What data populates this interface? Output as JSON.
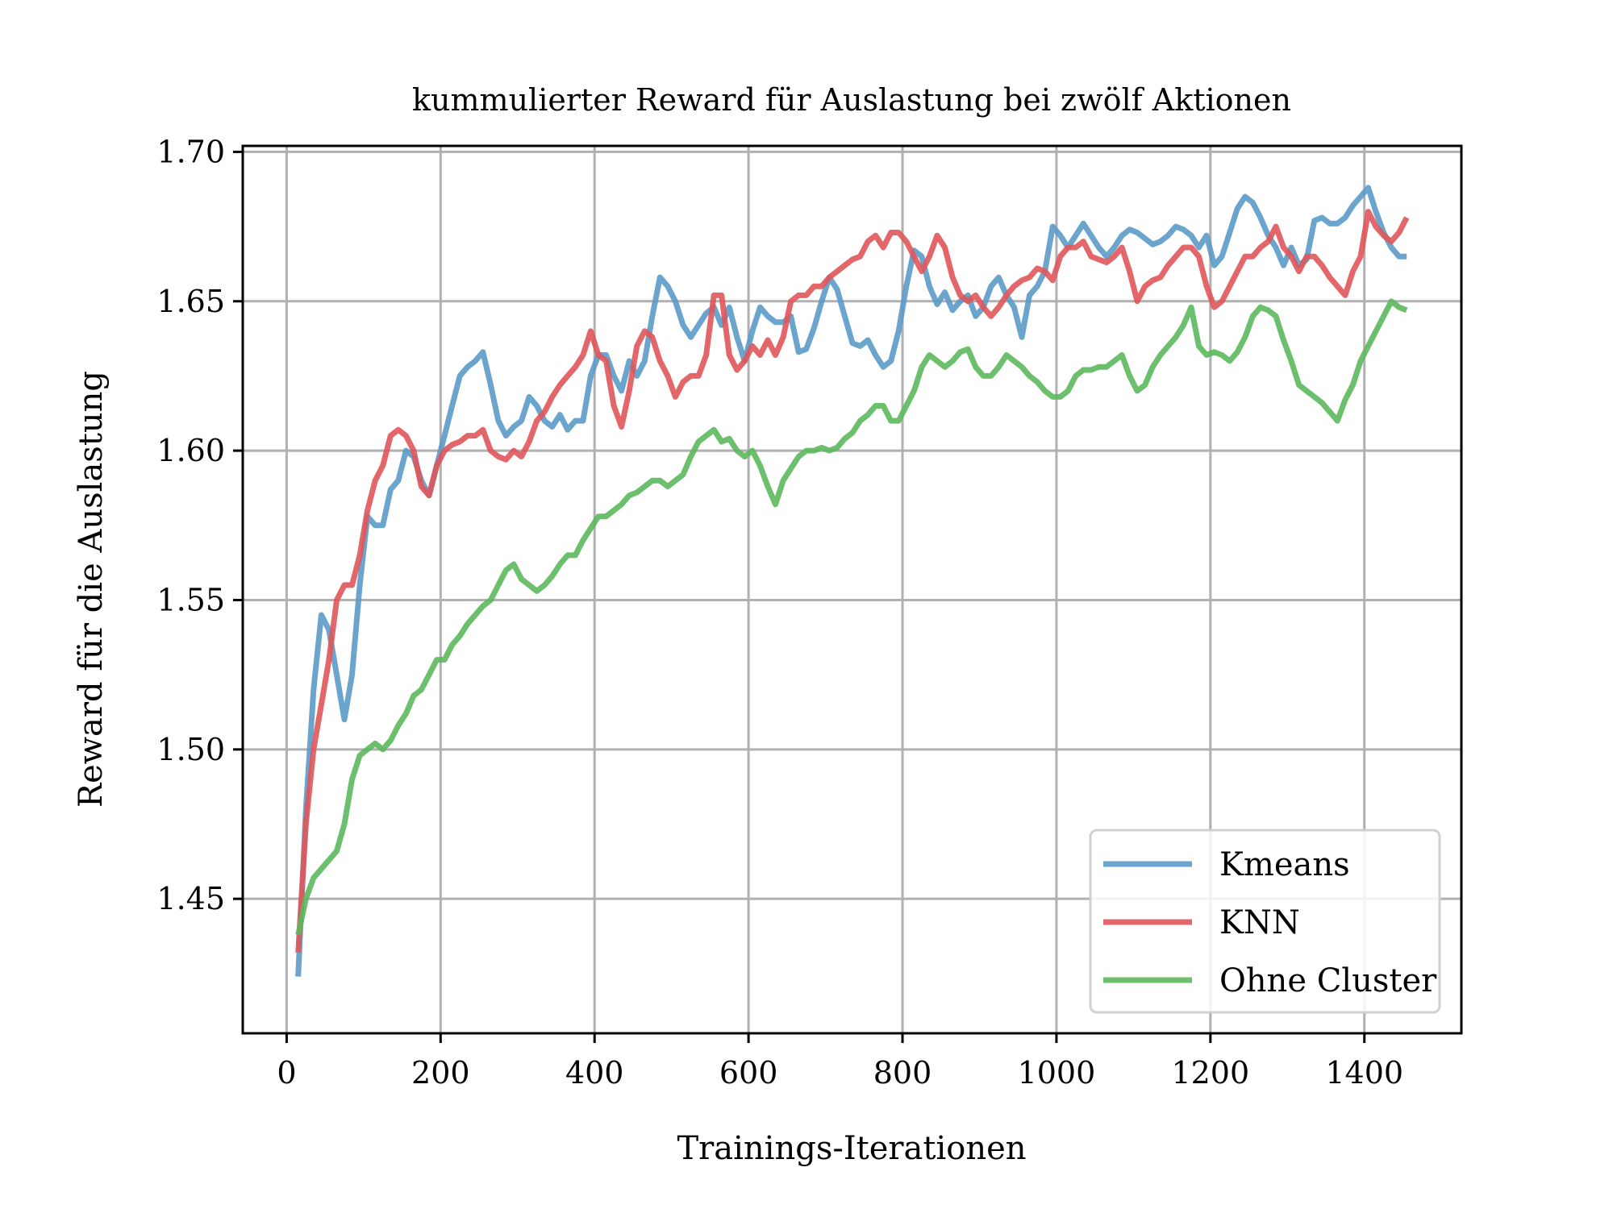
{
  "chart_data": {
    "type": "line",
    "title": "kummulierter Reward für Auslastung bei zwölf Aktionen",
    "xlabel": "Trainings-Iterationen",
    "ylabel": "Reward für die Auslastung",
    "xlim": [
      -57,
      1526
    ],
    "ylim": [
      1.405,
      1.702
    ],
    "xticks": [
      0,
      200,
      400,
      600,
      800,
      1000,
      1200,
      1400
    ],
    "xtick_labels": [
      "0",
      "200",
      "400",
      "600",
      "800",
      "1000",
      "1200",
      "1400"
    ],
    "yticks": [
      1.45,
      1.5,
      1.55,
      1.6,
      1.65,
      1.7
    ],
    "ytick_labels": [
      "1.45",
      "1.50",
      "1.55",
      "1.60",
      "1.65",
      "1.70"
    ],
    "grid": true,
    "legend_position": "lower-right",
    "series": [
      {
        "name": "Kmeans",
        "color": "#5b9bc8",
        "x": [
          15,
          25,
          35,
          45,
          55,
          65,
          75,
          85,
          95,
          105,
          115,
          125,
          135,
          145,
          155,
          165,
          175,
          185,
          195,
          205,
          215,
          225,
          235,
          245,
          255,
          265,
          275,
          285,
          295,
          305,
          315,
          325,
          335,
          345,
          355,
          365,
          375,
          385,
          395,
          405,
          415,
          425,
          435,
          445,
          455,
          465,
          475,
          485,
          495,
          505,
          515,
          525,
          535,
          545,
          555,
          565,
          575,
          585,
          595,
          605,
          615,
          625,
          635,
          645,
          655,
          665,
          675,
          685,
          695,
          705,
          715,
          725,
          735,
          745,
          755,
          765,
          775,
          785,
          795,
          805,
          815,
          825,
          835,
          845,
          855,
          865,
          875,
          885,
          895,
          905,
          915,
          925,
          935,
          945,
          955,
          965,
          975,
          985,
          995,
          1005,
          1015,
          1025,
          1035,
          1045,
          1055,
          1065,
          1075,
          1085,
          1095,
          1105,
          1115,
          1125,
          1135,
          1145,
          1155,
          1165,
          1175,
          1185,
          1195,
          1205,
          1215,
          1225,
          1235,
          1245,
          1255,
          1265,
          1275,
          1285,
          1295,
          1305,
          1315,
          1325,
          1335,
          1345,
          1355,
          1365,
          1375,
          1385,
          1395,
          1405,
          1415,
          1425,
          1435,
          1445,
          1455
        ],
        "values": [
          1.424,
          1.48,
          1.52,
          1.545,
          1.54,
          1.525,
          1.51,
          1.525,
          1.555,
          1.578,
          1.575,
          1.575,
          1.587,
          1.59,
          1.6,
          1.598,
          1.59,
          1.585,
          1.595,
          1.605,
          1.615,
          1.625,
          1.628,
          1.63,
          1.633,
          1.622,
          1.61,
          1.605,
          1.608,
          1.61,
          1.618,
          1.615,
          1.61,
          1.608,
          1.612,
          1.607,
          1.61,
          1.61,
          1.625,
          1.632,
          1.632,
          1.625,
          1.62,
          1.63,
          1.625,
          1.63,
          1.645,
          1.658,
          1.655,
          1.65,
          1.642,
          1.638,
          1.642,
          1.646,
          1.648,
          1.642,
          1.648,
          1.638,
          1.63,
          1.64,
          1.648,
          1.645,
          1.643,
          1.643,
          1.645,
          1.633,
          1.634,
          1.641,
          1.65,
          1.658,
          1.654,
          1.645,
          1.636,
          1.635,
          1.637,
          1.632,
          1.628,
          1.63,
          1.64,
          1.655,
          1.667,
          1.665,
          1.655,
          1.649,
          1.653,
          1.647,
          1.65,
          1.652,
          1.645,
          1.648,
          1.655,
          1.658,
          1.652,
          1.648,
          1.638,
          1.652,
          1.655,
          1.66,
          1.675,
          1.672,
          1.668,
          1.672,
          1.676,
          1.672,
          1.668,
          1.665,
          1.668,
          1.672,
          1.674,
          1.673,
          1.671,
          1.669,
          1.67,
          1.672,
          1.675,
          1.674,
          1.672,
          1.668,
          1.672,
          1.662,
          1.665,
          1.673,
          1.681,
          1.685,
          1.683,
          1.678,
          1.672,
          1.668,
          1.662,
          1.668,
          1.662,
          1.664,
          1.677,
          1.678,
          1.676,
          1.676,
          1.678,
          1.682,
          1.685,
          1.688,
          1.68,
          1.673,
          1.668,
          1.665,
          1.665
        ]
      },
      {
        "name": "KNN",
        "color": "#e0575a",
        "x": [
          15,
          25,
          35,
          45,
          55,
          65,
          75,
          85,
          95,
          105,
          115,
          125,
          135,
          145,
          155,
          165,
          175,
          185,
          195,
          205,
          215,
          225,
          235,
          245,
          255,
          265,
          275,
          285,
          295,
          305,
          315,
          325,
          335,
          345,
          355,
          365,
          375,
          385,
          395,
          405,
          415,
          425,
          435,
          445,
          455,
          465,
          475,
          485,
          495,
          505,
          515,
          525,
          535,
          545,
          555,
          565,
          575,
          585,
          595,
          605,
          615,
          625,
          635,
          645,
          655,
          665,
          675,
          685,
          695,
          705,
          715,
          725,
          735,
          745,
          755,
          765,
          775,
          785,
          795,
          805,
          815,
          825,
          835,
          845,
          855,
          865,
          875,
          885,
          895,
          905,
          915,
          925,
          935,
          945,
          955,
          965,
          975,
          985,
          995,
          1005,
          1015,
          1025,
          1035,
          1045,
          1055,
          1065,
          1075,
          1085,
          1095,
          1105,
          1115,
          1125,
          1135,
          1145,
          1155,
          1165,
          1175,
          1185,
          1195,
          1205,
          1215,
          1225,
          1235,
          1245,
          1255,
          1265,
          1275,
          1285,
          1295,
          1305,
          1315,
          1325,
          1335,
          1345,
          1355,
          1365,
          1375,
          1385,
          1395,
          1405,
          1415,
          1425,
          1435,
          1445,
          1455
        ],
        "values": [
          1.432,
          1.475,
          1.5,
          1.515,
          1.53,
          1.55,
          1.555,
          1.555,
          1.565,
          1.58,
          1.59,
          1.595,
          1.605,
          1.607,
          1.605,
          1.6,
          1.588,
          1.585,
          1.595,
          1.6,
          1.602,
          1.603,
          1.605,
          1.605,
          1.607,
          1.6,
          1.598,
          1.597,
          1.6,
          1.598,
          1.603,
          1.61,
          1.613,
          1.618,
          1.622,
          1.625,
          1.628,
          1.632,
          1.64,
          1.632,
          1.63,
          1.615,
          1.608,
          1.62,
          1.635,
          1.64,
          1.638,
          1.63,
          1.625,
          1.618,
          1.623,
          1.625,
          1.625,
          1.632,
          1.652,
          1.652,
          1.632,
          1.627,
          1.63,
          1.635,
          1.632,
          1.637,
          1.632,
          1.638,
          1.65,
          1.652,
          1.652,
          1.655,
          1.655,
          1.658,
          1.66,
          1.662,
          1.664,
          1.665,
          1.67,
          1.672,
          1.668,
          1.673,
          1.673,
          1.67,
          1.665,
          1.66,
          1.665,
          1.672,
          1.668,
          1.658,
          1.652,
          1.65,
          1.652,
          1.648,
          1.645,
          1.648,
          1.652,
          1.655,
          1.657,
          1.658,
          1.661,
          1.66,
          1.657,
          1.665,
          1.668,
          1.668,
          1.67,
          1.665,
          1.664,
          1.663,
          1.665,
          1.668,
          1.66,
          1.65,
          1.655,
          1.657,
          1.658,
          1.662,
          1.665,
          1.668,
          1.668,
          1.665,
          1.655,
          1.648,
          1.65,
          1.655,
          1.66,
          1.665,
          1.665,
          1.668,
          1.67,
          1.675,
          1.668,
          1.665,
          1.66,
          1.665,
          1.665,
          1.662,
          1.658,
          1.655,
          1.652,
          1.66,
          1.665,
          1.68,
          1.675,
          1.672,
          1.67,
          1.673,
          1.678
        ]
      },
      {
        "name": "Ohne Cluster",
        "color": "#5cb85c",
        "x": [
          15,
          25,
          35,
          45,
          55,
          65,
          75,
          85,
          95,
          105,
          115,
          125,
          135,
          145,
          155,
          165,
          175,
          185,
          195,
          205,
          215,
          225,
          235,
          245,
          255,
          265,
          275,
          285,
          295,
          305,
          315,
          325,
          335,
          345,
          355,
          365,
          375,
          385,
          395,
          405,
          415,
          425,
          435,
          445,
          455,
          465,
          475,
          485,
          495,
          505,
          515,
          525,
          535,
          545,
          555,
          565,
          575,
          585,
          595,
          605,
          615,
          625,
          635,
          645,
          655,
          665,
          675,
          685,
          695,
          705,
          715,
          725,
          735,
          745,
          755,
          765,
          775,
          785,
          795,
          805,
          815,
          825,
          835,
          845,
          855,
          865,
          875,
          885,
          895,
          905,
          915,
          925,
          935,
          945,
          955,
          965,
          975,
          985,
          995,
          1005,
          1015,
          1025,
          1035,
          1045,
          1055,
          1065,
          1075,
          1085,
          1095,
          1105,
          1115,
          1125,
          1135,
          1145,
          1155,
          1165,
          1175,
          1185,
          1195,
          1205,
          1215,
          1225,
          1235,
          1245,
          1255,
          1265,
          1275,
          1285,
          1295,
          1305,
          1315,
          1325,
          1335,
          1345,
          1355,
          1365,
          1375,
          1385,
          1395,
          1405,
          1415,
          1425,
          1435,
          1445,
          1455
        ],
        "values": [
          1.438,
          1.45,
          1.457,
          1.46,
          1.463,
          1.466,
          1.475,
          1.49,
          1.498,
          1.5,
          1.502,
          1.5,
          1.503,
          1.508,
          1.512,
          1.518,
          1.52,
          1.525,
          1.53,
          1.53,
          1.535,
          1.538,
          1.542,
          1.545,
          1.548,
          1.55,
          1.555,
          1.56,
          1.562,
          1.557,
          1.555,
          1.553,
          1.555,
          1.558,
          1.562,
          1.565,
          1.565,
          1.57,
          1.574,
          1.578,
          1.578,
          1.58,
          1.582,
          1.585,
          1.586,
          1.588,
          1.59,
          1.59,
          1.588,
          1.59,
          1.592,
          1.598,
          1.603,
          1.605,
          1.607,
          1.603,
          1.604,
          1.6,
          1.598,
          1.6,
          1.595,
          1.588,
          1.582,
          1.59,
          1.594,
          1.598,
          1.6,
          1.6,
          1.601,
          1.6,
          1.601,
          1.604,
          1.606,
          1.61,
          1.612,
          1.615,
          1.615,
          1.61,
          1.61,
          1.615,
          1.62,
          1.628,
          1.632,
          1.63,
          1.628,
          1.63,
          1.633,
          1.634,
          1.628,
          1.625,
          1.625,
          1.628,
          1.632,
          1.63,
          1.628,
          1.625,
          1.623,
          1.62,
          1.618,
          1.618,
          1.62,
          1.625,
          1.627,
          1.627,
          1.628,
          1.628,
          1.63,
          1.632,
          1.625,
          1.62,
          1.622,
          1.628,
          1.632,
          1.635,
          1.638,
          1.642,
          1.648,
          1.635,
          1.632,
          1.633,
          1.632,
          1.63,
          1.633,
          1.638,
          1.645,
          1.648,
          1.647,
          1.645,
          1.637,
          1.63,
          1.622,
          1.62,
          1.618,
          1.616,
          1.613,
          1.61,
          1.617,
          1.622,
          1.63,
          1.635,
          1.64,
          1.645,
          1.65,
          1.648,
          1.647
        ]
      }
    ]
  }
}
